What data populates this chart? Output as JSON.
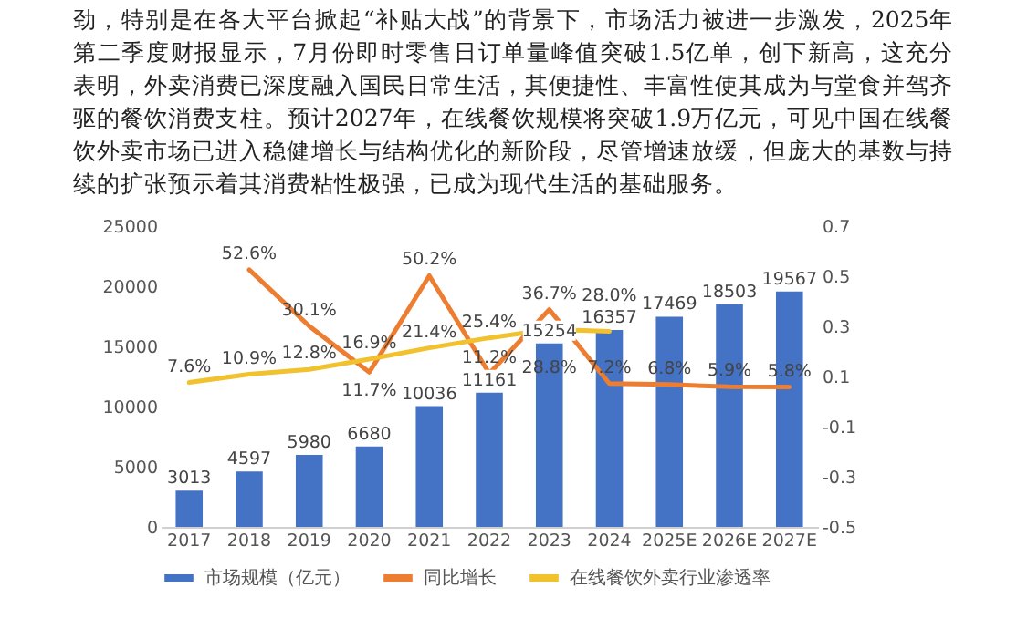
{
  "chart_data": {
    "type": "bar",
    "annotations": [
      "劲，特别是在各大平台掀起“补贴大战”的背景下，市场活力被进一步激发，2025年第二季度财报显示，7月份即时零售日订单量峰值突破1.5亿单，创下新高，这充分表明，外卖消费已深度融入国民日常生活，其便捷性、丰富性使其成为与堂食并驾齐驱的餐饮消费支柱。预计2027年，在线餐饮规模将突破1.9万亿元，可见中国在线餐饮外卖市场已进入稳健增长与结构优化的新阶段，尽管增速放缓，但庞大的基数与持续的扩张预示着其消费粘性极强，已成为现代生活的基础服务。"
    ],
    "categories": [
      "2017",
      "2018",
      "2019",
      "2020",
      "2021",
      "2022",
      "2023",
      "2024",
      "2025E",
      "2026E",
      "2027E"
    ],
    "series": [
      {
        "name": "市场规模（亿元）",
        "color": "#4472c4",
        "values": [
          3013,
          4597,
          5980,
          6680,
          10036,
          11161,
          15254,
          16357,
          17469,
          18503,
          19567
        ]
      },
      {
        "name": "同比增长",
        "type": "line",
        "axis": "y2",
        "color": "#ed7d31",
        "values": [
          null,
          0.526,
          0.301,
          0.117,
          0.502,
          0.112,
          0.367,
          0.072,
          0.068,
          0.059,
          0.058
        ],
        "value_labels": [
          null,
          "52.6%",
          "30.1%",
          "11.7%",
          "50.2%",
          "11.2%",
          "36.7%",
          "7.2%",
          "6.8%",
          "5.9%",
          "5.8%"
        ]
      },
      {
        "name": "在线餐饮外卖行业渗透率",
        "type": "line",
        "axis": "y2",
        "color": "#f2c12e",
        "values": [
          0.076,
          0.109,
          0.128,
          0.169,
          0.214,
          0.254,
          0.288,
          0.28,
          null,
          null,
          null
        ],
        "value_labels": [
          "7.6%",
          "10.9%",
          "12.8%",
          "16.9%",
          "21.4%",
          "25.4%",
          "28.8%",
          "28.0%",
          null,
          null,
          null
        ]
      }
    ],
    "data_labels": true,
    "ylim": [
      0,
      25000
    ],
    "yticks": [
      0,
      5000,
      10000,
      15000,
      20000,
      25000
    ],
    "y2lim": [
      -0.5,
      0.7
    ],
    "y2ticks": [
      0.7,
      0.5,
      0.3,
      0.1,
      -0.1,
      -0.3,
      -0.5
    ],
    "legend": "bottom",
    "grid": false
  }
}
